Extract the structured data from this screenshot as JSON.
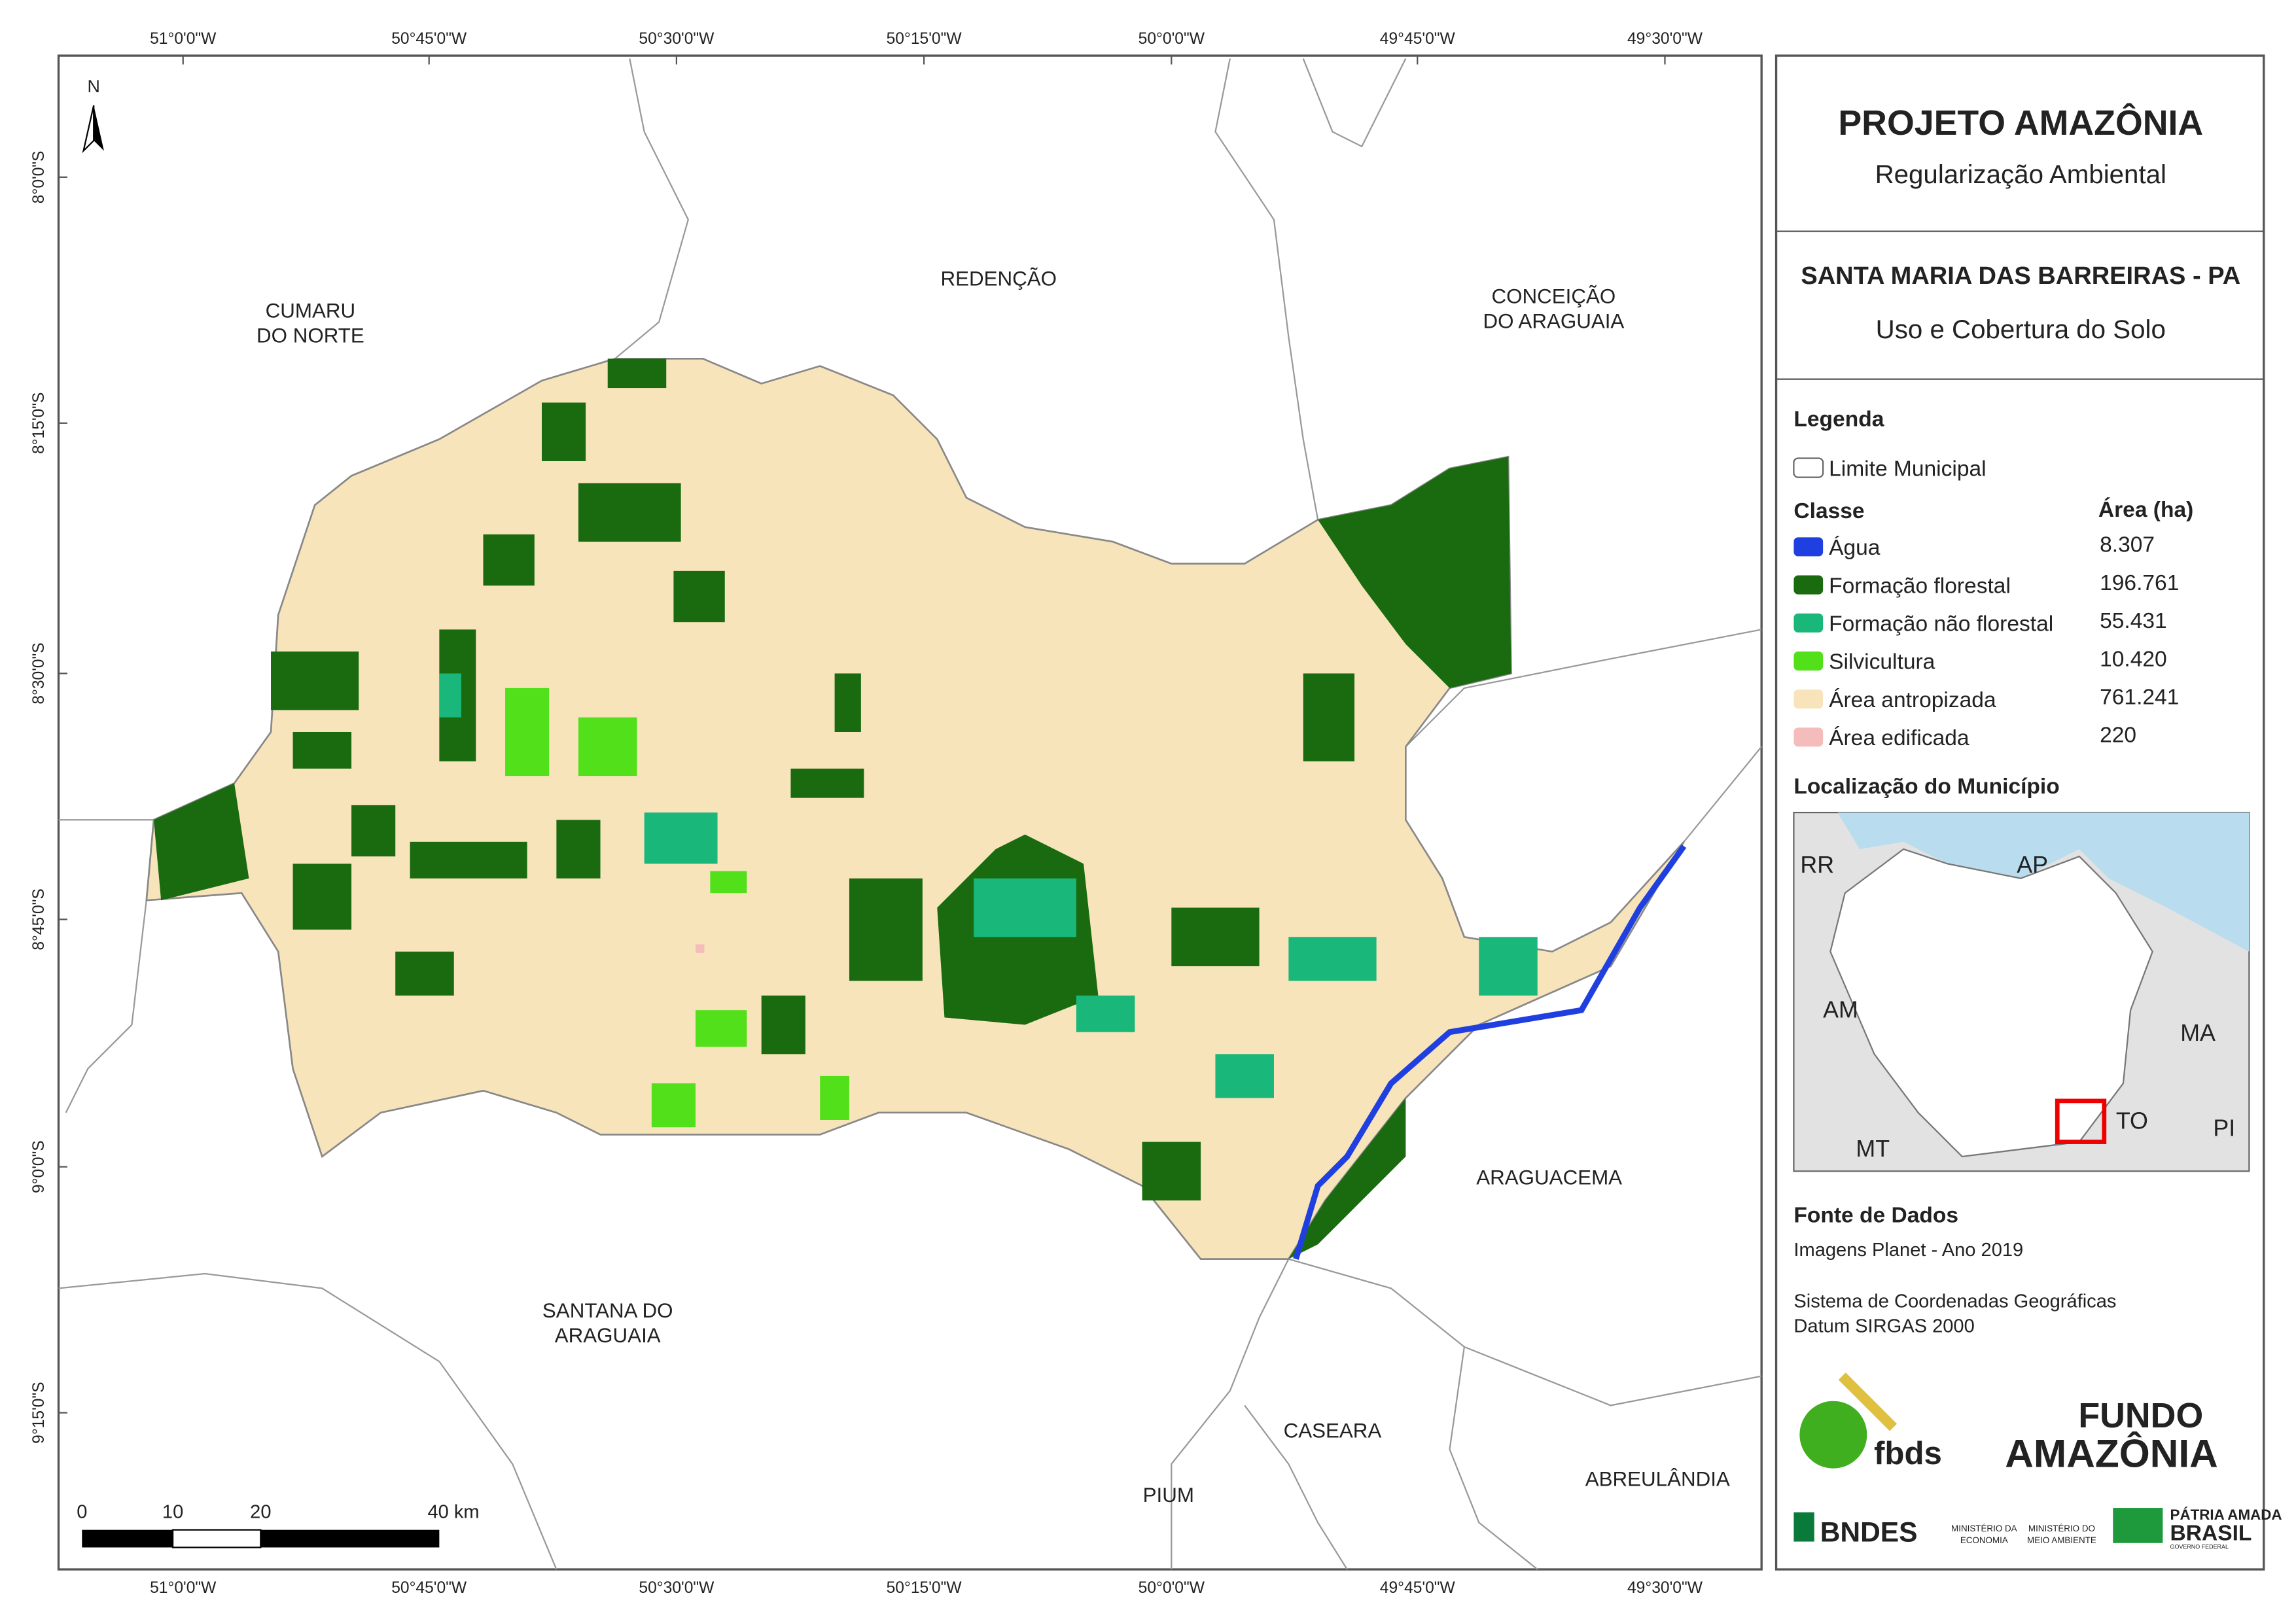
{
  "header": {
    "title": "PROJETO AMAZÔNIA",
    "subtitle": "Regularização Ambiental"
  },
  "municipality": {
    "name": "SANTA MARIA DAS BARREIRAS - PA",
    "theme": "Uso e Cobertura do Solo"
  },
  "legend": {
    "heading": "Legenda",
    "boundary": "Limite Municipal",
    "class_header": "Classe",
    "area_header": "Área (ha)",
    "classes": [
      {
        "name": "Água",
        "area": "8.307",
        "color": "#1f3fe0"
      },
      {
        "name": "Formação florestal",
        "area": "196.761",
        "color": "#1a6b10"
      },
      {
        "name": "Formação não florestal",
        "area": "55.431",
        "color": "#19b77a"
      },
      {
        "name": "Silvicultura",
        "area": "10.420",
        "color": "#52e01a"
      },
      {
        "name": "Área antropizada",
        "area": "761.241",
        "color": "#f7e4bb"
      },
      {
        "name": "Área edificada",
        "area": "220",
        "color": "#f5bcbc"
      }
    ]
  },
  "location": {
    "heading": "Localização do Município",
    "states": [
      "RR",
      "AP",
      "AM",
      "MA",
      "MT",
      "TO",
      "PI"
    ]
  },
  "sources": {
    "heading": "Fonte de Dados",
    "lines": [
      "Imagens Planet - Ano 2019",
      "Sistema de Coordenadas Geográficas",
      "Datum SIRGAS 2000"
    ]
  },
  "logos": {
    "fbds": "fbds",
    "fundo": [
      "FUNDO",
      "AMAZÔNIA"
    ],
    "bndes": "BNDES",
    "ministry1": [
      "MINISTÉRIO DA",
      "ECONOMIA"
    ],
    "ministry2": [
      "MINISTÉRIO DO",
      "MEIO AMBIENTE"
    ],
    "brasil": [
      "PÁTRIA AMADA",
      "BRASIL",
      "GOVERNO FEDERAL"
    ]
  },
  "map": {
    "north": "N",
    "longitudes": [
      "51°0'0\"W",
      "50°45'0\"W",
      "50°30'0\"W",
      "50°15'0\"W",
      "50°0'0\"W",
      "49°45'0\"W",
      "49°30'0\"W"
    ],
    "latitudes": [
      "8°0'0\"S",
      "8°15'0\"S",
      "8°30'0\"S",
      "8°45'0\"S",
      "9°0'0\"S",
      "9°15'0\"S"
    ],
    "neighbors": [
      [
        "CUMARU",
        "DO NORTE"
      ],
      [
        "REDENÇÃO"
      ],
      [
        "CONCEIÇÃO",
        "DO ARAGUAIA"
      ],
      [
        "SANTANA DO",
        "ARAGUAIA"
      ],
      [
        "ARAGUACEMA"
      ],
      [
        "CASEARA"
      ],
      [
        "PIUM"
      ],
      [
        "ABREULÂNDIA"
      ]
    ],
    "scale": [
      "0",
      "10",
      "20",
      "40 km"
    ]
  }
}
